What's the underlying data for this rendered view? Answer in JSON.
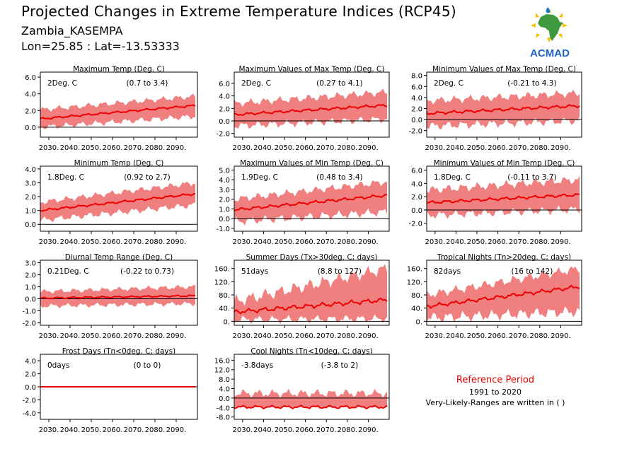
{
  "header": {
    "title": "Projected Changes in Extreme Temperature Indices (RCP45)",
    "location": "Zambia_KASEMPA",
    "coords": "Lon=25.85 : Lat=-13.53333"
  },
  "logo": {
    "text": "ACMAD",
    "icon": "africa-map-logo-icon"
  },
  "reference": {
    "title": "Reference Period",
    "years": "1991 to 2020",
    "ranges_note": "Very-Likely-Ranges are written in ( )"
  },
  "colors": {
    "band": "#f08080",
    "line": "#ee0000",
    "zero": "#000000",
    "ref_title": "#e00000"
  },
  "chart_data": [
    {
      "type": "area",
      "title": "Maximum Temp (Deg. C)",
      "value_label": "2Deg. C",
      "range_label": "(0.7 to 3.4)",
      "ylim": [
        -1.2,
        6.6
      ],
      "yticks": [
        "6.0",
        "4.0",
        "2.0",
        "0.0"
      ],
      "ytick_values": [
        6,
        4,
        2,
        0
      ],
      "xticks": [
        "2030.",
        "2040.",
        "2050.",
        "2060.",
        "2070.",
        "2080.",
        "2090."
      ],
      "x_range": [
        2026,
        2100
      ],
      "series": [
        {
          "values_start": 1.0,
          "values_end": 2.6
        }
      ],
      "band": {
        "low_start": 0.0,
        "low_end": 1.3,
        "high_start": 2.1,
        "high_end": 3.7
      }
    },
    {
      "type": "area",
      "title": "Maximum Values of Max Temp (Deg. C)",
      "value_label": "2Deg. C",
      "range_label": "(0.27 to 4.1)",
      "ylim": [
        -2.6,
        7.8
      ],
      "yticks": [
        "6.0",
        "4.0",
        "2.0",
        "0.0",
        "-2.0"
      ],
      "ytick_values": [
        6,
        4,
        2,
        0,
        -2
      ],
      "xticks": [
        "2030.",
        "2040.",
        "2050.",
        "2060.",
        "2070.",
        "2080.",
        "2090."
      ],
      "x_range": [
        2026,
        2100
      ],
      "series": [
        {
          "values_start": 1.0,
          "values_end": 2.5
        }
      ],
      "band": {
        "low_start": -0.8,
        "low_end": 0.3,
        "high_start": 2.8,
        "high_end": 4.6
      }
    },
    {
      "type": "area",
      "title": "Minimum Values of Max Temp (Deg. C)",
      "value_label": "2Deg. C",
      "range_label": "(-0.21 to 4.3)",
      "ylim": [
        -3.2,
        8.6
      ],
      "yticks": [
        "8.0",
        "6.0",
        "4.0",
        "2.0",
        "0.0",
        "-2.0"
      ],
      "ytick_values": [
        8,
        6,
        4,
        2,
        0,
        -2
      ],
      "xticks": [
        "2030.",
        "2040.",
        "2050.",
        "2060.",
        "2070.",
        "2080.",
        "2090."
      ],
      "x_range": [
        2026,
        2100
      ],
      "series": [
        {
          "values_start": 1.1,
          "values_end": 2.5
        }
      ],
      "band": {
        "low_start": -1.2,
        "low_end": -0.2,
        "high_start": 3.4,
        "high_end": 4.8
      }
    },
    {
      "type": "area",
      "title": "Minimum Temp (Deg. C)",
      "value_label": "1.8Deg. C",
      "range_label": "(0.92 to 2.7)",
      "ylim": [
        -0.5,
        4.2
      ],
      "yticks": [
        "4.0",
        "3.0",
        "2.0",
        "1.0",
        "0.0"
      ],
      "ytick_values": [
        4,
        3,
        2,
        1,
        0
      ],
      "xticks": [
        "2030.",
        "2040.",
        "2050.",
        "2060.",
        "2070.",
        "2080.",
        "2090."
      ],
      "x_range": [
        2026,
        2100
      ],
      "series": [
        {
          "values_start": 1.0,
          "values_end": 2.2
        }
      ],
      "band": {
        "low_start": 0.3,
        "low_end": 1.4,
        "high_start": 1.6,
        "high_end": 3.0
      }
    },
    {
      "type": "area",
      "title": "Maximum Values of Min Temp (Deg. C)",
      "value_label": "1.9Deg. C",
      "range_label": "(0.48 to 3.4)",
      "ylim": [
        -1.3,
        5.4
      ],
      "yticks": [
        "5.0",
        "4.0",
        "3.0",
        "2.0",
        "1.0",
        "0.0",
        "-1.0"
      ],
      "ytick_values": [
        5,
        4,
        3,
        2,
        1,
        0,
        -1
      ],
      "xticks": [
        "2030.",
        "2040.",
        "2050.",
        "2060.",
        "2070.",
        "2080.",
        "2090."
      ],
      "x_range": [
        2026,
        2100
      ],
      "series": [
        {
          "values_start": 0.9,
          "values_end": 2.4
        }
      ],
      "band": {
        "low_start": -0.3,
        "low_end": 0.7,
        "high_start": 2.0,
        "high_end": 3.8
      }
    },
    {
      "type": "area",
      "title": "Minimum Values of Min Temp (Deg. C)",
      "value_label": "1.8Deg. C",
      "range_label": "(-0.11 to 3.7)",
      "ylim": [
        -3.2,
        6.6
      ],
      "yticks": [
        "6.0",
        "4.0",
        "2.0",
        "0.0",
        "-2.0"
      ],
      "ytick_values": [
        6,
        4,
        2,
        0,
        -2
      ],
      "xticks": [
        "2030.",
        "2040.",
        "2050.",
        "2060.",
        "2070.",
        "2080.",
        "2090."
      ],
      "x_range": [
        2026,
        2100
      ],
      "series": [
        {
          "values_start": 1.1,
          "values_end": 2.3
        }
      ],
      "band": {
        "low_start": -0.8,
        "low_end": 0.1,
        "high_start": 3.0,
        "high_end": 4.6
      }
    },
    {
      "type": "area",
      "title": "Diurnal Temp Range (Deg. C)",
      "value_label": "0.21Deg. C",
      "range_label": "(-0.22 to 0.73)",
      "ylim": [
        -2.2,
        3.2
      ],
      "yticks": [
        "3.0",
        "2.0",
        "1.0",
        "0.0",
        "-1.0",
        "-2.0"
      ],
      "ytick_values": [
        3,
        2,
        1,
        0,
        -1,
        -2
      ],
      "xticks": [
        "2030.",
        "2040.",
        "2050.",
        "2060.",
        "2070.",
        "2080.",
        "2090."
      ],
      "x_range": [
        2026,
        2100
      ],
      "series": [
        {
          "values_start": 0.05,
          "values_end": 0.25
        }
      ],
      "band": {
        "low_start": -0.6,
        "low_end": -0.4,
        "high_start": 0.6,
        "high_end": 1.0
      }
    },
    {
      "type": "area",
      "title": "Summer Days (Tx>30deg. C; days)",
      "value_label": "51days",
      "range_label": "(8.8 to 127)",
      "ylim": [
        -12,
        185
      ],
      "yticks": [
        "160.",
        "120.",
        "80.",
        "40.",
        "0."
      ],
      "ytick_values": [
        160,
        120,
        80,
        40,
        0
      ],
      "xticks": [
        "2030.",
        "2040.",
        "2050.",
        "2060.",
        "2070.",
        "2080.",
        "2090."
      ],
      "x_range": [
        2026,
        2100
      ],
      "series": [
        {
          "values_start": 28,
          "values_end": 65
        }
      ],
      "band": {
        "low_start": 5,
        "low_end": 8,
        "high_start": 60,
        "high_end": 160
      }
    },
    {
      "type": "area",
      "title": "Tropical Nights (Tn>20deg. C; days)",
      "value_label": "82days",
      "range_label": "(16 to 142)",
      "ylim": [
        -12,
        185
      ],
      "yticks": [
        "160.",
        "120.",
        "80.",
        "40.",
        "0."
      ],
      "ytick_values": [
        160,
        120,
        80,
        40,
        0
      ],
      "xticks": [
        "2030.",
        "2040.",
        "2050.",
        "2060.",
        "2070.",
        "2080.",
        "2090."
      ],
      "x_range": [
        2026,
        2100
      ],
      "series": [
        {
          "values_start": 45,
          "values_end": 105
        }
      ],
      "band": {
        "low_start": 10,
        "low_end": 30,
        "high_start": 80,
        "high_end": 160
      }
    },
    {
      "type": "area",
      "title": "Frost Days (Tn<0deg. C; days)",
      "value_label": "0days",
      "range_label": "(0 to 0)",
      "ylim": [
        -5,
        5
      ],
      "yticks": [
        "4.0",
        "2.0",
        "0.0",
        "-2.0",
        "-4.0"
      ],
      "ytick_values": [
        4,
        2,
        0,
        -2,
        -4
      ],
      "xticks": [
        "2030.",
        "2040.",
        "2050.",
        "2060.",
        "2070.",
        "2080.",
        "2090."
      ],
      "x_range": [
        2026,
        2100
      ],
      "series": [
        {
          "values_start": 0,
          "values_end": 0
        }
      ],
      "band": {
        "low_start": 0,
        "low_end": 0,
        "high_start": 0,
        "high_end": 0
      }
    },
    {
      "type": "area",
      "title": "Cool Nights (Tn<10deg. C; days)",
      "value_label": "-3.8days",
      "range_label": "(-3.8 to 2)",
      "ylim": [
        -9,
        18.5
      ],
      "yticks": [
        "16.0",
        "12.0",
        "8.0",
        "4.0",
        "0.0",
        "-4.0",
        "-8.0"
      ],
      "ytick_values": [
        16,
        12,
        8,
        4,
        0,
        -4,
        -8
      ],
      "xticks": [
        "2030.",
        "2040.",
        "2050.",
        "2060.",
        "2070.",
        "2080.",
        "2090."
      ],
      "x_range": [
        2026,
        2100
      ],
      "series": [
        {
          "values_start": -3.8,
          "values_end": -3.8
        }
      ],
      "band": {
        "low_start": -3.8,
        "low_end": -3.8,
        "high_start": 2,
        "high_end": 2
      }
    }
  ]
}
